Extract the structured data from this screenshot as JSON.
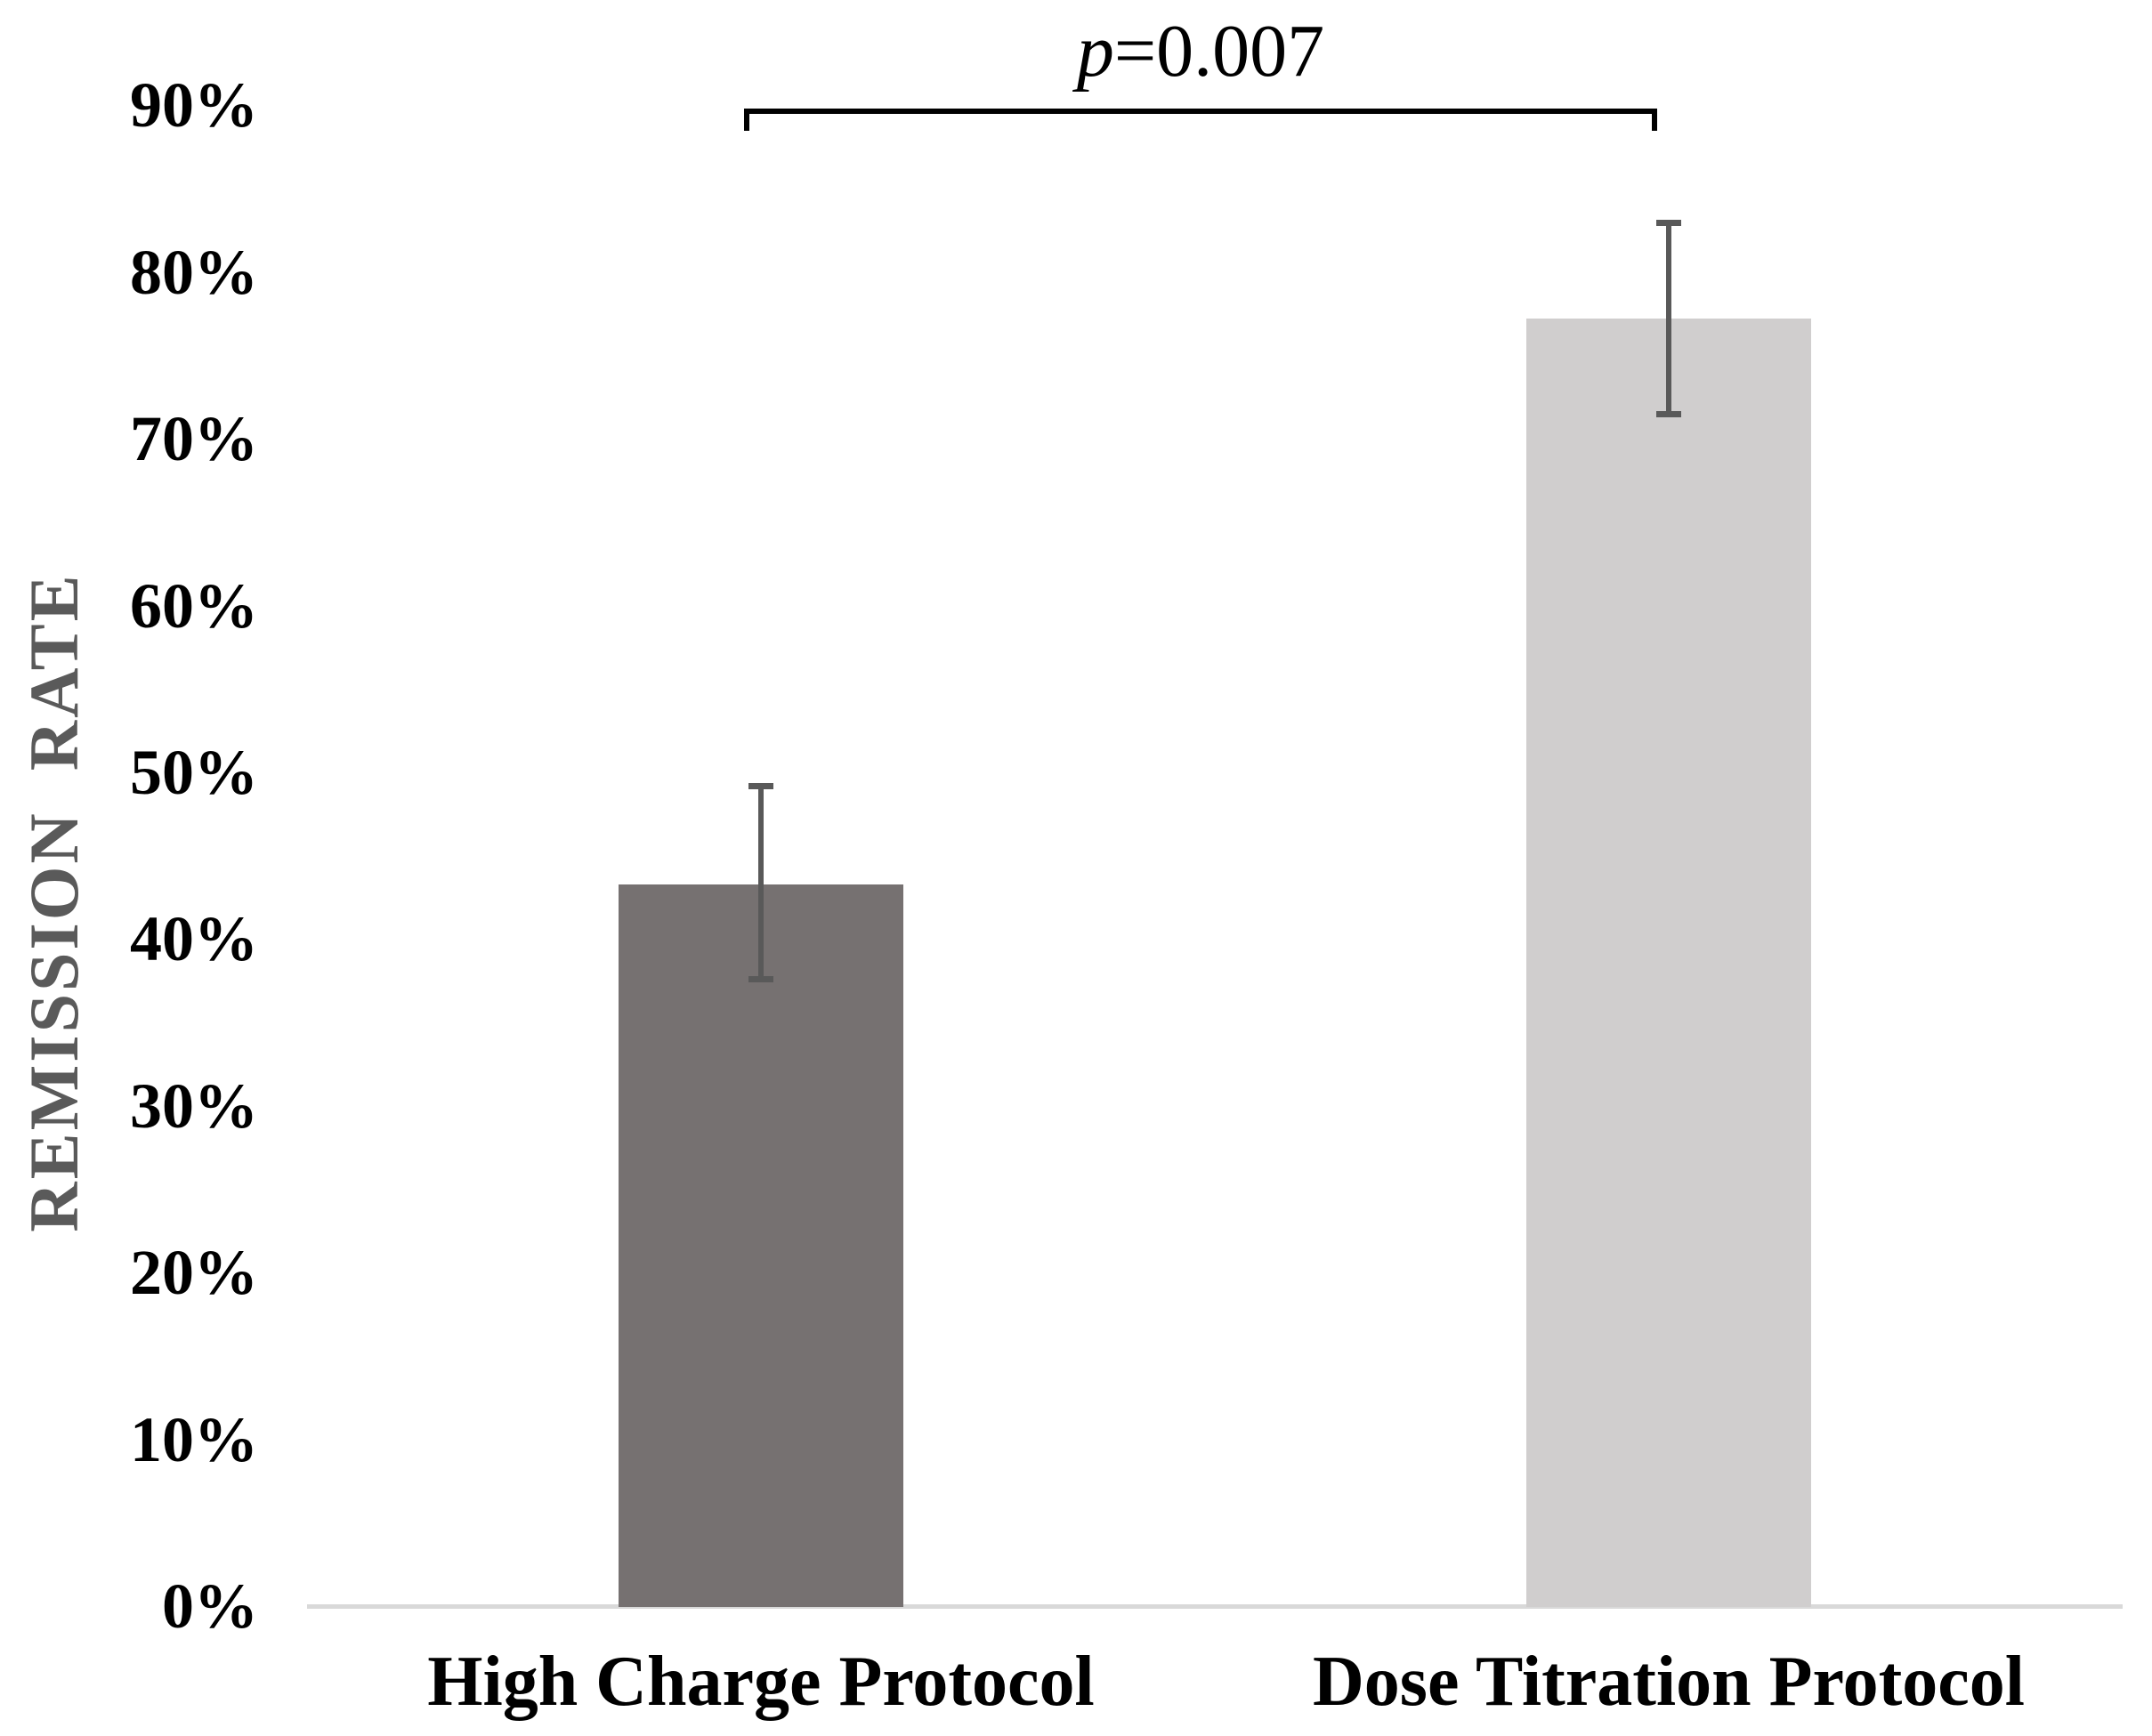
{
  "figure": {
    "background": "#ffffff"
  },
  "chart_data": {
    "type": "bar",
    "title": "",
    "xlabel": "",
    "ylabel": "REMISSION  RATE",
    "categories": [
      "High Charge Protocol",
      "Dose Titration Protocol"
    ],
    "values": [
      43.3,
      77.2
    ],
    "error_low": [
      37.6,
      71.5
    ],
    "error_high": [
      49.2,
      83.0
    ],
    "bar_colors": [
      "#767171",
      "#d0cece"
    ],
    "yticks": [
      0,
      10,
      20,
      30,
      40,
      50,
      60,
      70,
      80,
      90
    ],
    "ytick_labels": [
      "0%",
      "10%",
      "20%",
      "30%",
      "40%",
      "50%",
      "60%",
      "70%",
      "80%",
      "90%"
    ],
    "ylim": [
      0,
      96.5
    ],
    "grid": false,
    "legend": null,
    "annotation": {
      "text": "p=0.007",
      "p_symbol": "p",
      "rest": "=0.007"
    }
  },
  "style": {
    "error_bar_color": "#595959",
    "axis_line_color": "#d9d9d9",
    "ylabel_color": "#5a5a5a",
    "bracket_color": "#000000",
    "text_color": "#000000"
  }
}
